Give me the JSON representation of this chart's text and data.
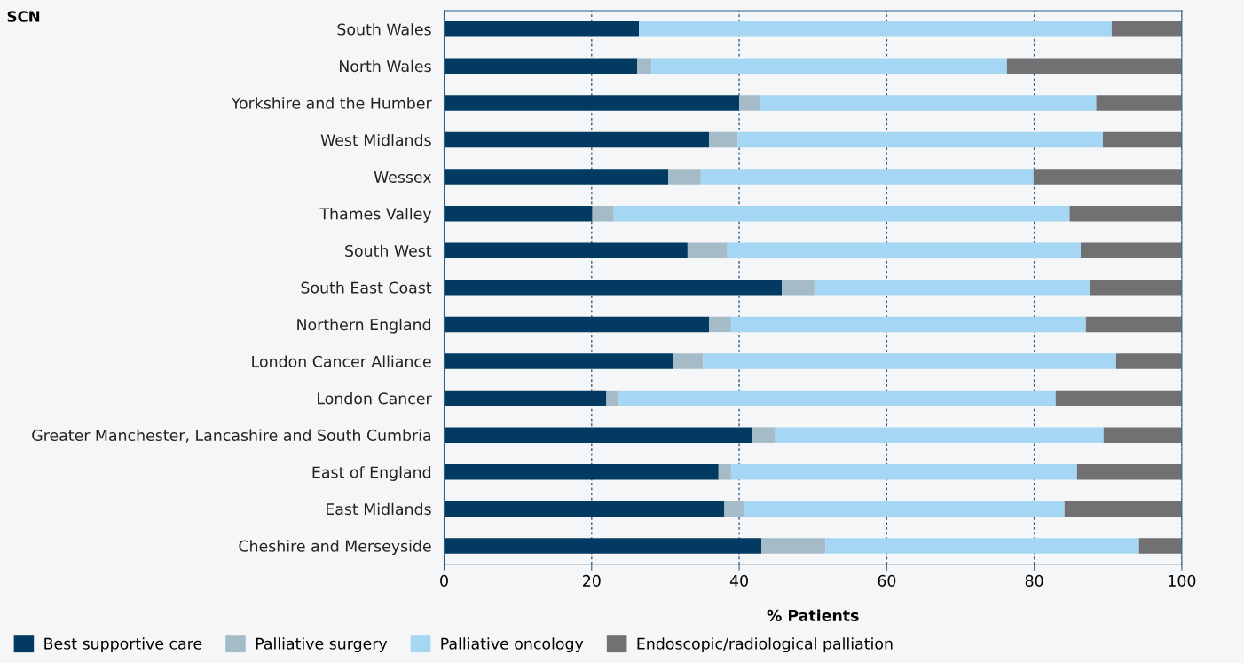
{
  "chart_data": {
    "type": "bar",
    "orientation": "horizontal",
    "stacked": true,
    "ylabel": "SCN",
    "xlabel": "% Patients",
    "categories": [
      "South Wales",
      "North Wales",
      "Yorkshire and the Humber",
      "West Midlands",
      "Wessex",
      "Thames Valley",
      "South West",
      "South East Coast",
      "Northern England",
      "London Cancer Alliance",
      "London Cancer",
      "Greater Manchester, Lancashire and South Cumbria",
      "East of England",
      "East Midlands",
      "Cheshire and Merseyside"
    ],
    "series": [
      {
        "name": "Best supportive care",
        "color": "#023a62",
        "values": [
          26.4,
          26.2,
          40.0,
          35.9,
          30.4,
          20.1,
          33.0,
          45.8,
          35.9,
          31.0,
          22.0,
          41.7,
          37.2,
          38.0,
          43.0
        ]
      },
      {
        "name": "Palliative surgery",
        "color": "#a6bbc8",
        "values": [
          null,
          1.9,
          2.8,
          3.9,
          4.4,
          2.9,
          5.4,
          4.4,
          3.0,
          4.1,
          1.7,
          3.2,
          1.7,
          2.6,
          8.7
        ]
      },
      {
        "name": "Palliative oncology",
        "color": "#a5d7f4",
        "values": [
          64.1,
          48.2,
          45.6,
          49.5,
          45.1,
          61.8,
          47.9,
          37.3,
          48.1,
          56.0,
          59.2,
          44.5,
          46.9,
          43.5,
          42.5
        ]
      },
      {
        "name": "Endoscopic/radiological palliation",
        "color": "#717174",
        "values": [
          9.5,
          23.7,
          11.6,
          10.7,
          20.1,
          15.2,
          13.7,
          12.5,
          13.0,
          8.9,
          17.1,
          10.6,
          14.2,
          15.9,
          5.8
        ]
      }
    ],
    "xlim": [
      0,
      100
    ],
    "xticks": [
      0,
      20,
      40,
      60,
      80,
      100
    ],
    "grid": "x",
    "legend": "bottom"
  }
}
